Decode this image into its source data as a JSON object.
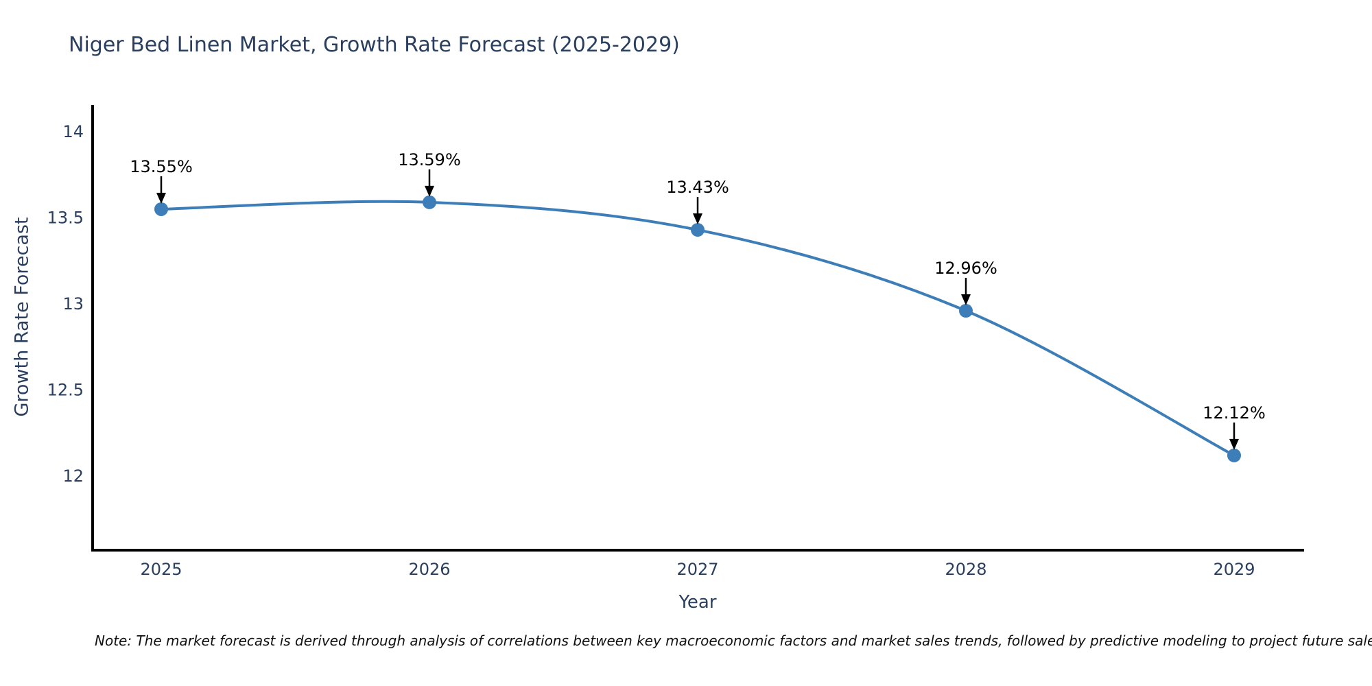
{
  "title": "Niger Bed Linen Market, Growth Rate Forecast (2025-2029)",
  "note": "Note: The market forecast is derived through analysis of correlations between key macroeconomic factors and market sales trends, followed by predictive modeling to project future sales.",
  "chart_data": {
    "type": "line",
    "title": "Niger Bed Linen Market, Growth Rate Forecast (2025-2029)",
    "xlabel": "Year",
    "ylabel": "Growth Rate Forecast",
    "categories": [
      "2025",
      "2026",
      "2027",
      "2028",
      "2029"
    ],
    "series": [
      {
        "name": "Growth Rate Forecast",
        "values": [
          13.55,
          13.59,
          13.43,
          12.96,
          12.12
        ]
      }
    ],
    "data_labels": [
      "13.55%",
      "13.59%",
      "13.43%",
      "12.96%",
      "12.12%"
    ],
    "yticks": [
      14,
      13.5,
      13,
      12.5,
      12
    ],
    "ytick_labels": [
      "14",
      "13.5",
      "13",
      "12.5",
      "12"
    ],
    "ylim": [
      11.56,
      14.23
    ],
    "grid": false,
    "legend": "none",
    "smooth": true,
    "annotation_style": "down-arrow",
    "colors": {
      "line": "#3d7eb8",
      "marker": "#3d7eb8",
      "axis_spine": "#000000",
      "tick_text": "#2a3f5f",
      "annotation": "#000000",
      "title_text": "#2a3f5f",
      "background": "#ffffff"
    }
  }
}
